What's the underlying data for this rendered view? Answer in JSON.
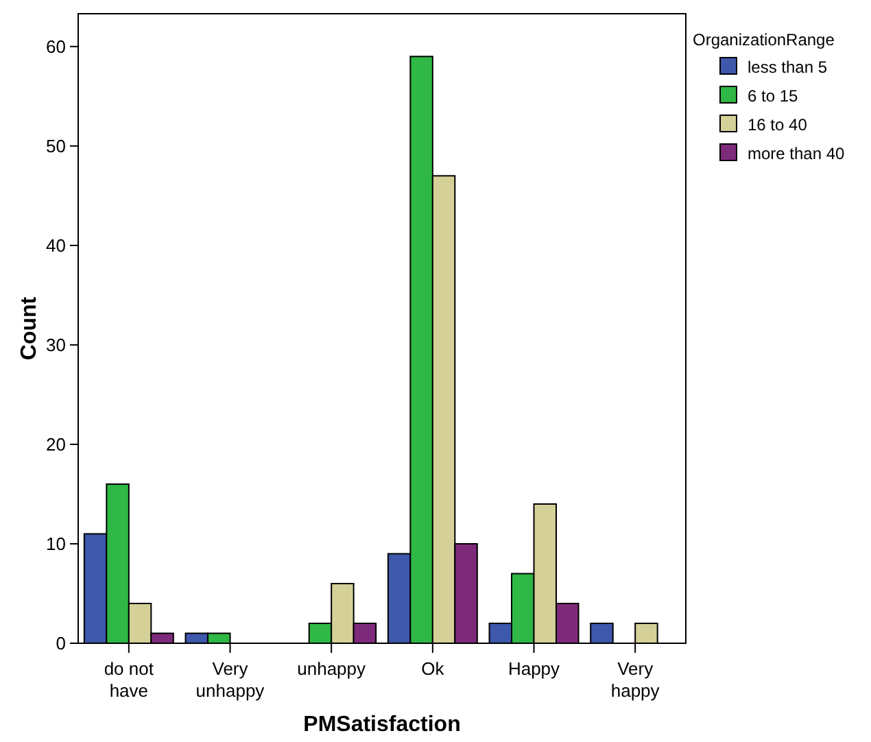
{
  "chart_data": {
    "type": "bar",
    "xlabel": "PMSatisfaction",
    "ylabel": "Count",
    "legend_title": "OrganizationRange",
    "categories": [
      "do not have",
      "Very unhappy",
      "unhappy",
      "Ok",
      "Happy",
      "Very happy"
    ],
    "series": [
      {
        "name": "less than 5",
        "color": "#3e58ac",
        "values": [
          11,
          1,
          null,
          9,
          2,
          2
        ]
      },
      {
        "name": "6 to 15",
        "color": "#2fb845",
        "values": [
          16,
          1,
          2,
          59,
          7,
          null
        ]
      },
      {
        "name": "16 to 40",
        "color": "#d4d098",
        "values": [
          4,
          null,
          6,
          47,
          14,
          2
        ]
      },
      {
        "name": "more than 40",
        "color": "#7e2a7a",
        "values": [
          1,
          null,
          2,
          10,
          4,
          null
        ]
      }
    ],
    "ylim": [
      0,
      63.3
    ],
    "yticks": [
      0,
      10,
      20,
      30,
      40,
      50,
      60
    ],
    "grid": false,
    "legend": "top right"
  }
}
